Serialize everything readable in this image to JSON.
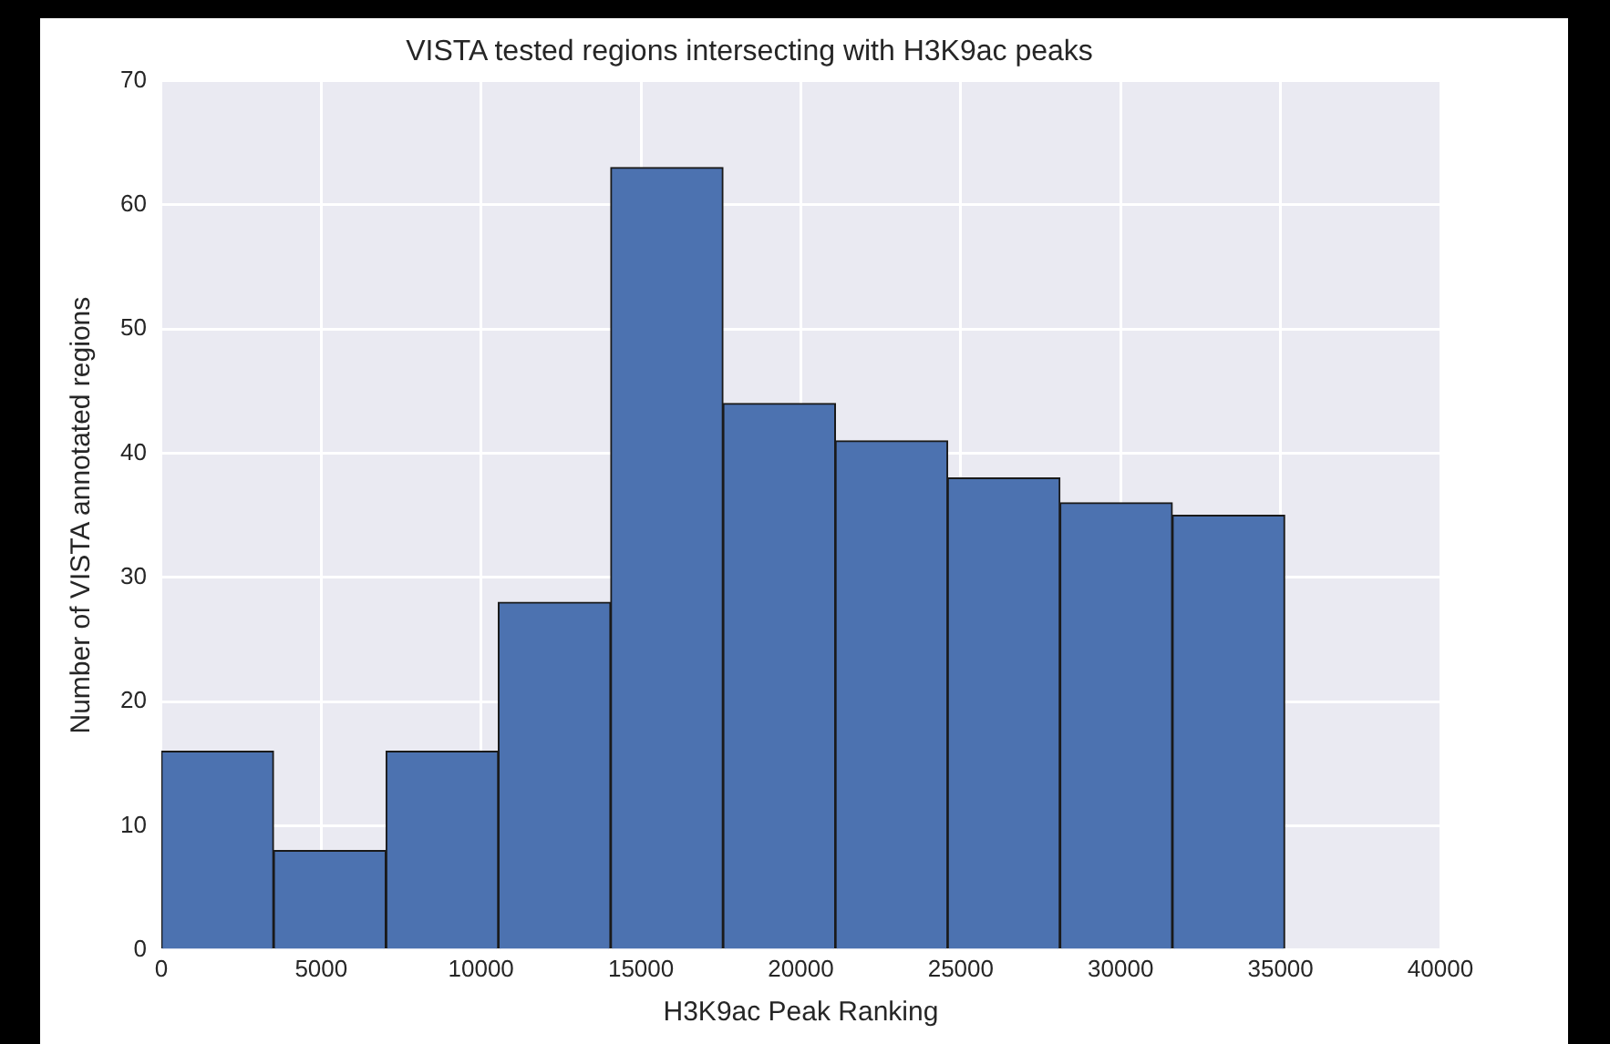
{
  "chart_data": {
    "type": "histogram",
    "title": "VISTA tested regions intersecting with H3K9ac peaks",
    "xlabel": "H3K9ac Peak Ranking",
    "ylabel": "Number of VISTA annotated regions",
    "bins": [
      0,
      3510,
      7030,
      10540,
      14050,
      17570,
      21080,
      24590,
      28100,
      31620,
      35130
    ],
    "values": [
      16,
      8,
      16,
      28,
      63,
      44,
      41,
      38,
      36,
      35
    ],
    "color": "#4c72b0",
    "xlim": [
      0,
      40000
    ],
    "xticks": [
      0,
      5000,
      10000,
      15000,
      20000,
      25000,
      30000,
      35000,
      40000
    ],
    "ylim": [
      0,
      70
    ],
    "yticks": [
      0,
      10,
      20,
      30,
      40,
      50,
      60,
      70
    ],
    "grid": true
  }
}
